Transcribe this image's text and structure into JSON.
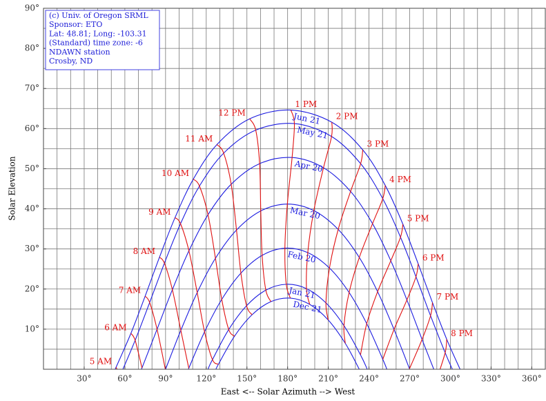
{
  "chart_data": {
    "type": "line",
    "xlabel": "East <-- Solar Azimuth --> West",
    "ylabel": "Solar Elevation",
    "info": [
      "(c) Univ. of Oregon SRML",
      "Sponsor: ETO",
      "Lat: 48.81; Long: -103.31",
      "(Standard) time zone: -6",
      "NDAWN station",
      "Crosby, ND"
    ],
    "xlim": [
      0,
      370
    ],
    "ylim": [
      0,
      90
    ],
    "xticks": [
      {
        "value": 30,
        "label": "30°"
      },
      {
        "value": 60,
        "label": "60°"
      },
      {
        "value": 90,
        "label": "90°"
      },
      {
        "value": 120,
        "label": "120°"
      },
      {
        "value": 150,
        "label": "150°"
      },
      {
        "value": 180,
        "label": "180°"
      },
      {
        "value": 210,
        "label": "210°"
      },
      {
        "value": 240,
        "label": "240°"
      },
      {
        "value": 270,
        "label": "270°"
      },
      {
        "value": 300,
        "label": "300°"
      },
      {
        "value": 330,
        "label": "330°"
      },
      {
        "value": 360,
        "label": "360°"
      }
    ],
    "yticks": [
      {
        "value": 10,
        "label": "10°"
      },
      {
        "value": 20,
        "label": "20°"
      },
      {
        "value": 30,
        "label": "30°"
      },
      {
        "value": 40,
        "label": "40°"
      },
      {
        "value": 50,
        "label": "50°"
      },
      {
        "value": 60,
        "label": "60°"
      },
      {
        "value": 70,
        "label": "70°"
      },
      {
        "value": 80,
        "label": "80°"
      },
      {
        "value": 90,
        "label": "90°"
      }
    ],
    "xgrid": [
      10,
      20,
      30,
      40,
      50,
      60,
      70,
      80,
      90,
      100,
      110,
      120,
      130,
      140,
      150,
      160,
      170,
      180,
      190,
      200,
      210,
      220,
      230,
      240,
      250,
      260,
      270,
      280,
      290,
      300,
      310,
      320,
      330,
      340,
      350,
      360
    ],
    "ygrid": [
      5,
      10,
      15,
      20,
      25,
      30,
      35,
      40,
      45,
      50,
      55,
      60,
      65,
      70,
      75,
      80,
      85
    ],
    "grid": true,
    "series": [
      {
        "name": "Jun 21",
        "color": "#1c1ce0",
        "kind": "date",
        "x": [
          52.85,
          53.5,
          64.45,
          74.93,
          85.53,
          96.98,
          110.47,
          127.92,
          152.04,
          182.4,
          212.6,
          235.4,
          252.0,
          265.0,
          276.27,
          286.8,
          297.3,
          307.15
        ],
        "values": [
          0,
          0.49,
          8.95,
          18.21,
          27.93,
          37.8,
          47.4,
          56.03,
          62.44,
          64.63,
          61.59,
          54.7,
          45.83,
          36.16,
          26.3,
          16.62,
          7.48,
          0
        ]
      },
      {
        "name": "May 21",
        "color": "#1c1ce0",
        "kind": "date",
        "x": [
          58.55,
          67.58,
          78.28,
          89.16,
          101.03,
          114.99,
          132.85,
          156.5,
          185.0,
          212.4,
          233.85,
          250.15,
          263.23,
          274.64,
          285.38,
          296.16,
          301.45
        ],
        "values": [
          0,
          7.21,
          16.64,
          26.45,
          36.29,
          45.67,
          53.88,
          59.62,
          61.25,
          58.04,
          51.26,
          42.52,
          32.93,
          23.06,
          13.34,
          4.12,
          0
        ]
      },
      {
        "name": "Apr 20",
        "color": "#1c1ce0",
        "kind": "date",
        "x": [
          72.23,
          72.62,
          83.74,
          95.03,
          107.23,
          121.3,
          138.39,
          159.35,
          183.3,
          206.45,
          226.42,
          242.6,
          256.08,
          267.96,
          279.13,
          287.77
        ],
        "values": [
          0,
          0.33,
          9.97,
          19.84,
          29.53,
          38.54,
          46.13,
          51.26,
          52.79,
          50.24,
          44.34,
          36.3,
          27.05,
          17.28,
          7.43,
          0
        ]
      },
      {
        "name": "Mar 20",
        "color": "#1c1ce0",
        "kind": "date",
        "x": [
          90,
          101.26,
          113.33,
          126.79,
          142.31,
          160.2,
          179.8,
          199.33,
          217.29,
          232.85,
          246.36,
          258.46,
          269.86,
          270
        ],
        "values": [
          0,
          9.7,
          19.12,
          27.67,
          34.72,
          39.48,
          41.19,
          39.56,
          34.86,
          27.87,
          19.34,
          9.93,
          0.12,
          0
        ]
      },
      {
        "name": "Feb 20",
        "color": "#1c1ce0",
        "kind": "date",
        "x": [
          106.84,
          107.13,
          118.76,
          131.44,
          145.55,
          161.2,
          178.0,
          194.86,
          210.87,
          225.35,
          238.34,
          250.18,
          253.16
        ],
        "values": [
          0,
          0.25,
          9.33,
          17.42,
          23.97,
          28.39,
          30.19,
          29.08,
          25.23,
          19.13,
          11.36,
          2.47,
          0
        ]
      },
      {
        "name": "Jan 21",
        "color": "#1c1ce0",
        "kind": "date",
        "x": [
          121.27,
          124.58,
          136.58,
          149.72,
          163.93,
          179.0,
          193.9,
          208.26,
          221.55,
          233.73,
          238.73
        ],
        "values": [
          0,
          2.4,
          9.9,
          15.83,
          19.72,
          21.19,
          20.1,
          16.54,
          10.88,
          3.58,
          0
        ]
      },
      {
        "name": "Dec 21",
        "color": "#1c1ce0",
        "kind": "date",
        "x": [
          127.15,
          128.98,
          140.87,
          153.8,
          167.7,
          182.0,
          196.3,
          209.93,
          222.53,
          232.85
        ],
        "values": [
          0,
          1.25,
          8.25,
          13.59,
          16.86,
          17.74,
          16.17,
          12.29,
          6.45,
          0
        ]
      },
      {
        "name": "5 AM",
        "color": "#e01010",
        "kind": "hour",
        "x": [
          56.5,
          53.5
        ],
        "values": [
          -1.51,
          0.49
        ]
      },
      {
        "name": "6 AM",
        "color": "#e01010",
        "kind": "hour",
        "x": [
          72.62,
          67.58,
          64.45
        ],
        "values": [
          0.33,
          7.21,
          8.95
        ]
      },
      {
        "name": "7 AM",
        "color": "#e01010",
        "kind": "hour",
        "x": [
          89.9,
          83.74,
          78.28,
          74.93
        ],
        "values": [
          -0.12,
          9.97,
          16.64,
          18.21
        ]
      },
      {
        "name": "8 AM",
        "color": "#e01010",
        "kind": "hour",
        "x": [
          107.13,
          101.26,
          95.03,
          89.16,
          85.53
        ],
        "values": [
          0.25,
          9.7,
          19.84,
          26.45,
          27.93
        ]
      },
      {
        "name": "9 AM",
        "color": "#e01010",
        "kind": "hour",
        "x": [
          128.98,
          124.58,
          118.76,
          113.33,
          107.23,
          101.03,
          96.98
        ],
        "values": [
          1.25,
          2.4,
          9.33,
          19.12,
          29.53,
          36.29,
          37.8
        ]
      },
      {
        "name": "10 AM",
        "color": "#e01010",
        "kind": "hour",
        "x": [
          140.87,
          136.58,
          131.44,
          126.79,
          121.3,
          114.99,
          110.47
        ],
        "values": [
          8.25,
          9.9,
          17.42,
          27.67,
          38.54,
          45.67,
          47.4
        ]
      },
      {
        "name": "11 AM",
        "color": "#e01010",
        "kind": "hour",
        "x": [
          153.8,
          149.72,
          145.55,
          142.31,
          138.39,
          132.85,
          127.92
        ],
        "values": [
          13.59,
          15.83,
          23.97,
          34.72,
          46.13,
          53.88,
          56.03
        ]
      },
      {
        "name": "12 PM",
        "color": "#e01010",
        "kind": "hour",
        "x": [
          167.7,
          163.93,
          161.2,
          160.2,
          159.35,
          156.5,
          152.04
        ],
        "values": [
          16.86,
          19.72,
          28.39,
          39.48,
          51.26,
          59.62,
          62.44
        ]
      },
      {
        "name": "1 PM",
        "color": "#e01010",
        "kind": "hour",
        "x": [
          182.0,
          179.0,
          178.0,
          179.8,
          183.3,
          185.0,
          182.4
        ],
        "values": [
          17.74,
          21.19,
          30.19,
          41.19,
          52.79,
          61.25,
          64.63
        ]
      },
      {
        "name": "2 PM",
        "color": "#e01010",
        "kind": "hour",
        "x": [
          196.3,
          193.9,
          194.86,
          199.33,
          206.45,
          212.4,
          212.6
        ],
        "values": [
          16.17,
          20.1,
          29.08,
          39.56,
          50.24,
          58.04,
          61.59
        ]
      },
      {
        "name": "3 PM",
        "color": "#e01010",
        "kind": "hour",
        "x": [
          209.93,
          208.26,
          210.87,
          217.29,
          226.42,
          233.85,
          235.4
        ],
        "values": [
          12.29,
          16.54,
          25.23,
          34.86,
          44.34,
          51.26,
          54.7
        ]
      },
      {
        "name": "4 PM",
        "color": "#e01010",
        "kind": "hour",
        "x": [
          222.53,
          221.55,
          225.35,
          232.85,
          242.6,
          250.15,
          252.0
        ],
        "values": [
          6.45,
          10.88,
          19.13,
          27.87,
          36.3,
          42.52,
          45.83
        ]
      },
      {
        "name": "5 PM",
        "color": "#e01010",
        "kind": "hour",
        "x": [
          233.73,
          238.34,
          246.36,
          256.08,
          263.23,
          265.0
        ],
        "values": [
          3.58,
          11.36,
          19.34,
          27.05,
          32.93,
          36.16
        ]
      },
      {
        "name": "6 PM",
        "color": "#e01010",
        "kind": "hour",
        "x": [
          250.18,
          258.46,
          267.96,
          274.64,
          276.27
        ],
        "values": [
          2.47,
          9.93,
          17.28,
          23.06,
          26.3
        ]
      },
      {
        "name": "7 PM",
        "color": "#e01010",
        "kind": "hour",
        "x": [
          269.86,
          279.13,
          285.38,
          286.8
        ],
        "values": [
          0.12,
          7.43,
          13.34,
          16.62
        ]
      },
      {
        "name": "8 PM",
        "color": "#e01010",
        "kind": "hour",
        "x": [
          290.34,
          296.16,
          297.3
        ],
        "values": [
          -2.11,
          4.12,
          7.48
        ]
      }
    ]
  }
}
